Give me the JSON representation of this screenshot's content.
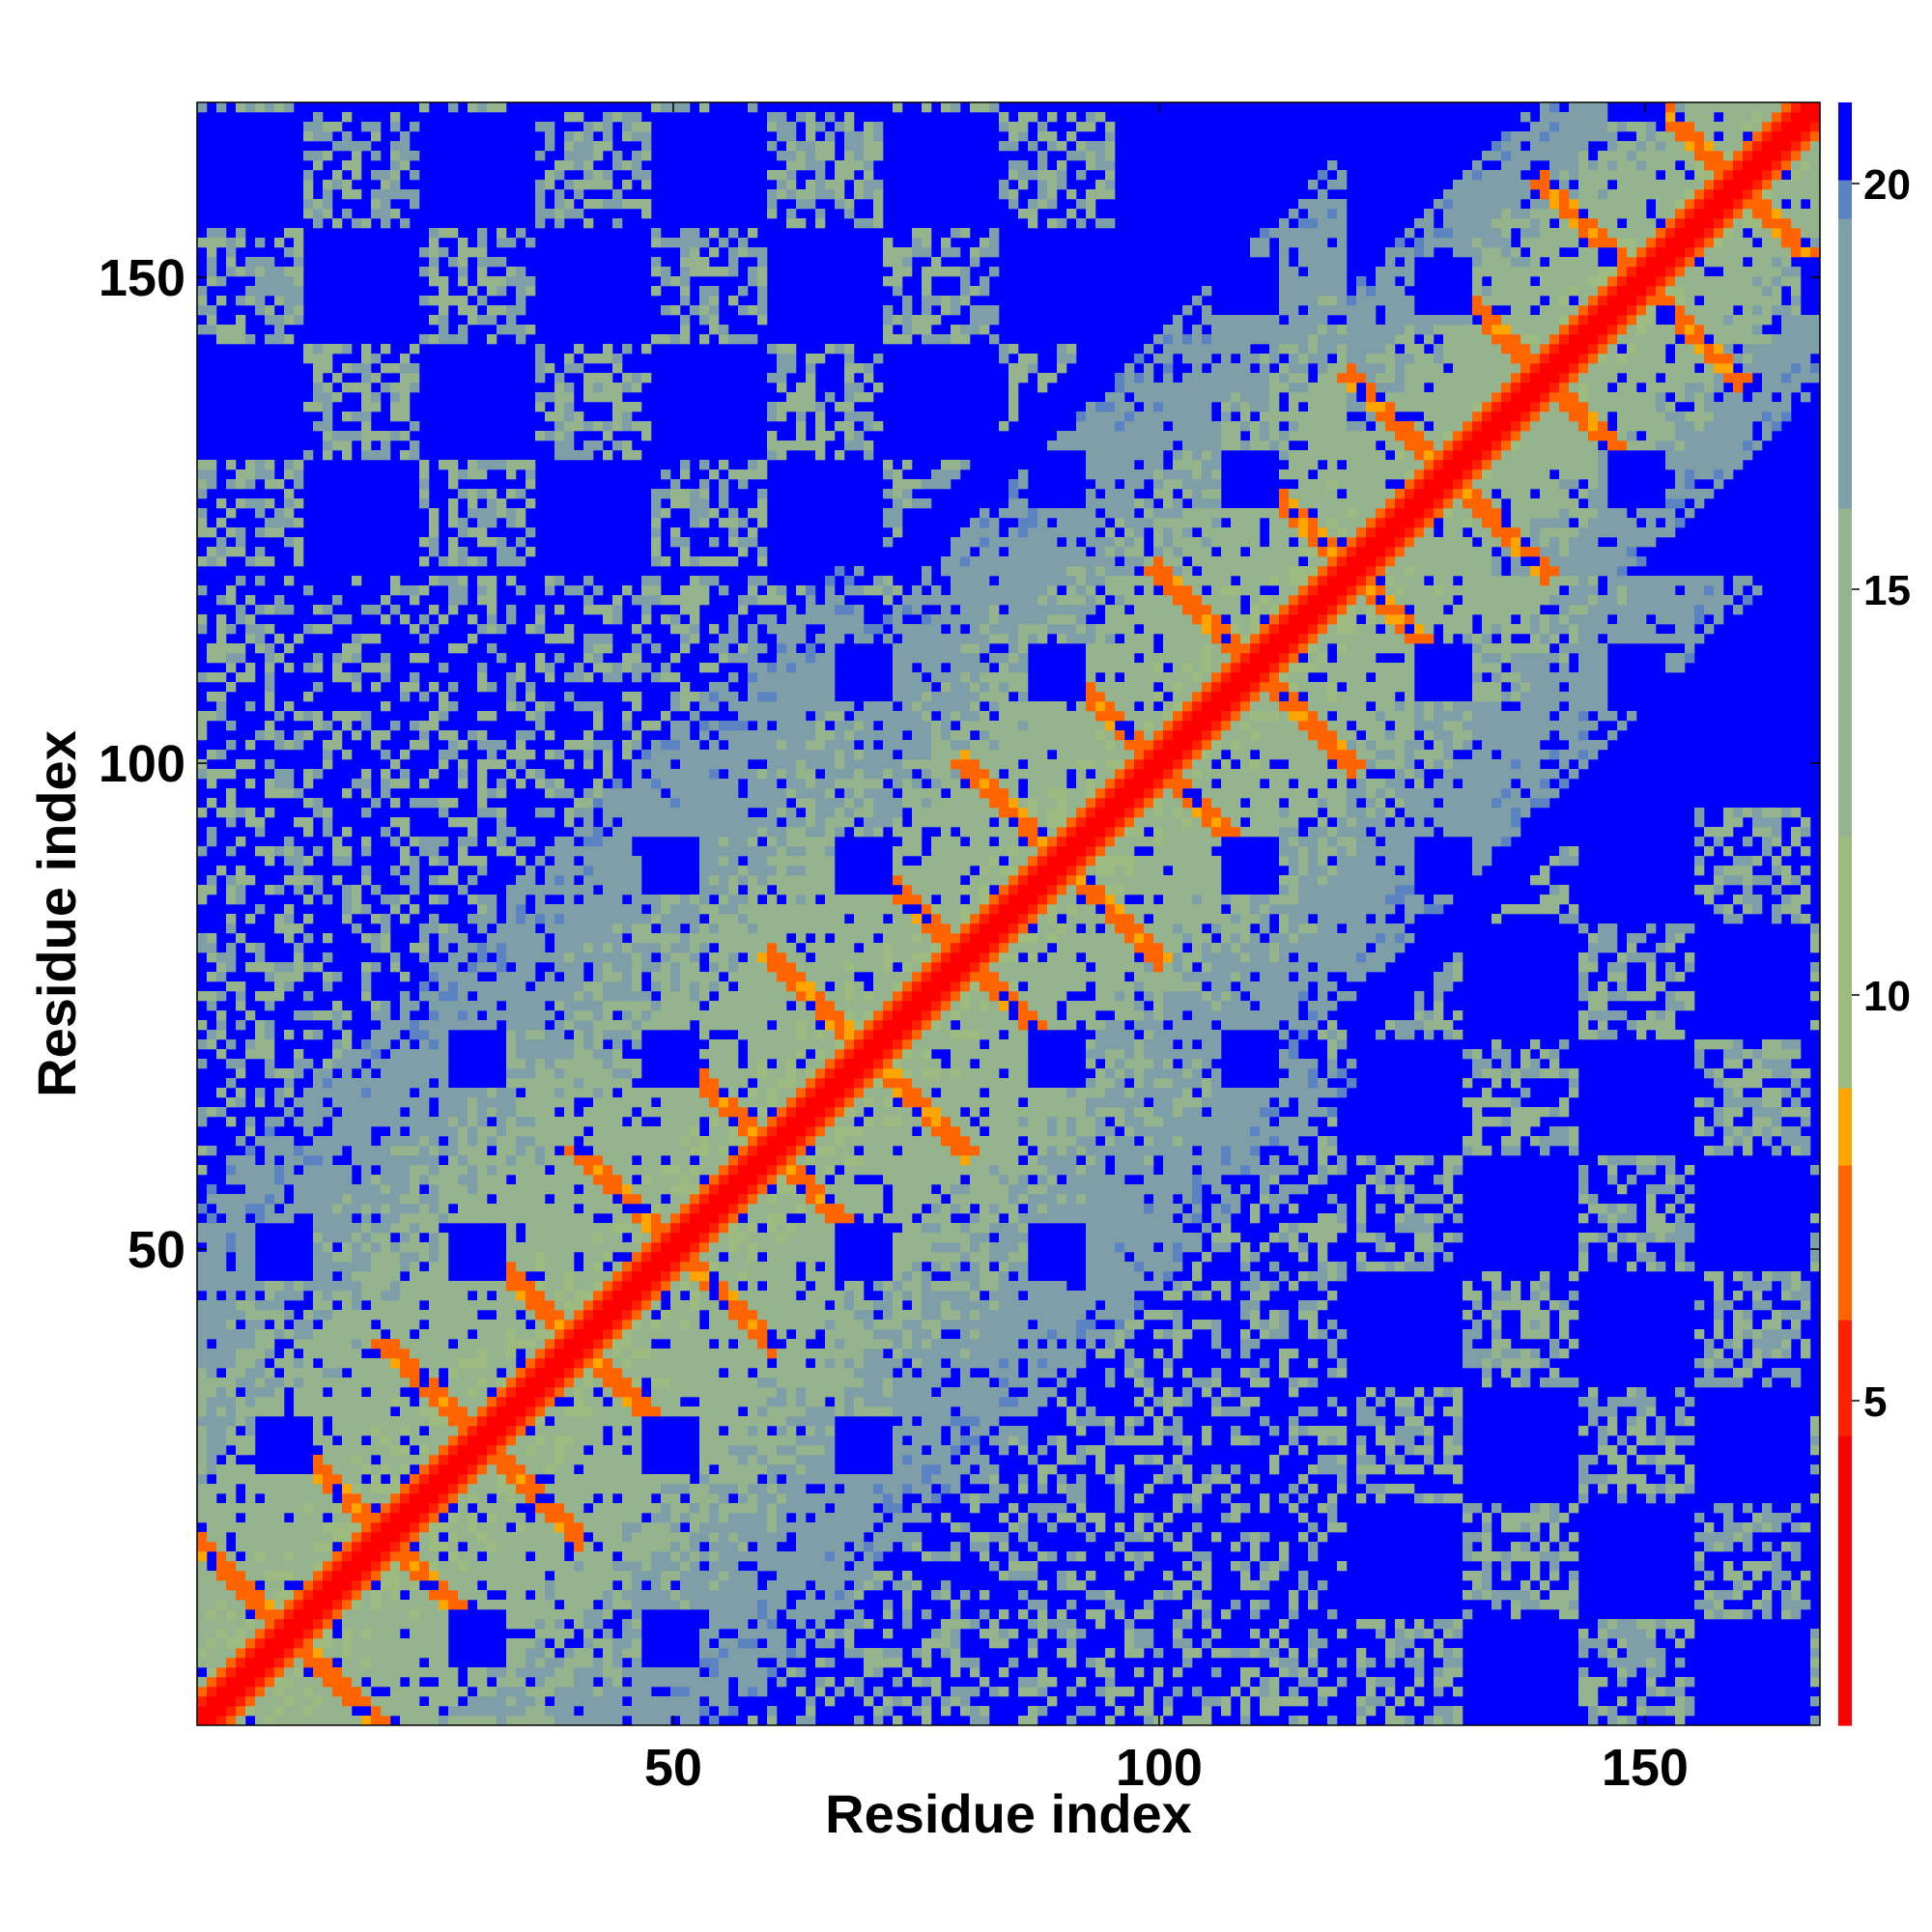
{
  "chart_data": {
    "type": "heatmap",
    "title": "",
    "xlabel": "Residue index",
    "ylabel": "Residue index",
    "n_residues": 168,
    "xlim": [
      1,
      168
    ],
    "ylim": [
      1,
      168
    ],
    "x_ticks": [
      50,
      100,
      150
    ],
    "y_ticks": [
      50,
      100,
      150
    ],
    "colorbar": {
      "range": [
        1,
        21
      ],
      "ticks": [
        5,
        10,
        15,
        20
      ],
      "colors": [
        {
          "stop": 1,
          "color": "#ff0000"
        },
        {
          "stop": 4.5,
          "color": "#ff2000"
        },
        {
          "stop": 6,
          "color": "#ff6400"
        },
        {
          "stop": 8,
          "color": "#ffa500"
        },
        {
          "stop": 8.8,
          "color": "#9dbb80"
        },
        {
          "stop": 12,
          "color": "#95b38c"
        },
        {
          "stop": 16,
          "color": "#7f9fa8"
        },
        {
          "stop": 19.5,
          "color": "#5b83c2"
        },
        {
          "stop": 20,
          "color": "#0000ff"
        }
      ]
    },
    "description_values": {
      "diagonal": "distance ~1-3 along i=j",
      "helix_crossings_centers": [
        5,
        15,
        25,
        35,
        45,
        55,
        65,
        75,
        85,
        95,
        105,
        115,
        125,
        140,
        150,
        160
      ],
      "background": 21
    }
  },
  "colors": {
    "far": "#0000ff",
    "mid": "#95b38c",
    "edge": "#6d8fb8",
    "near": "#ffa500",
    "close": "#ff0000"
  }
}
